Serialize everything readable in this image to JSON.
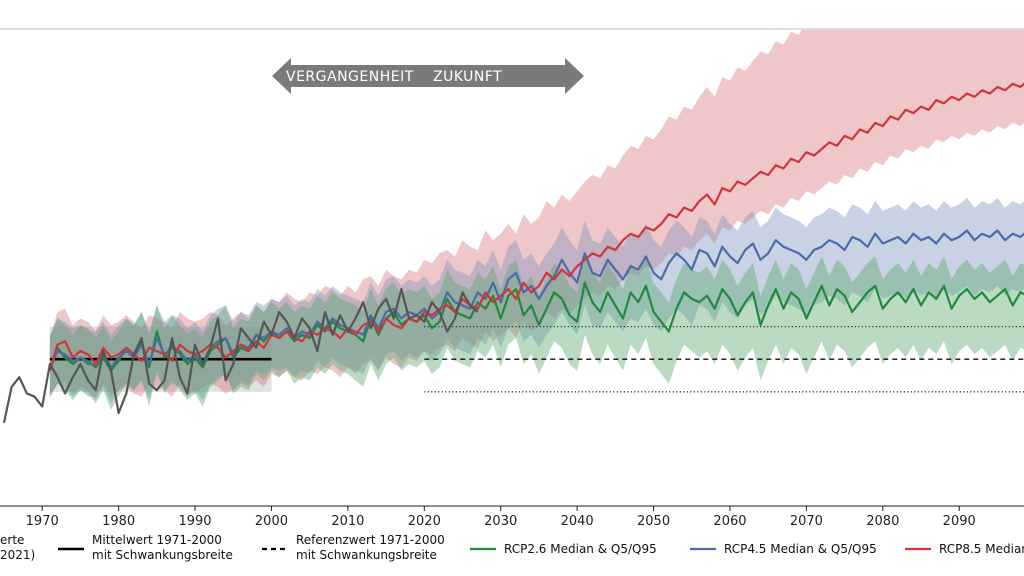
{
  "arrow": {
    "left_label": "VERGANGENHEIT",
    "right_label": "ZUKUNFT"
  },
  "legend": [
    {
      "key": "obs",
      "line1": "erte",
      "line2": "2021)",
      "color": "#555555",
      "dash": "solid"
    },
    {
      "key": "mean",
      "line1": "Mittelwert 1971-2000",
      "line2": "mit Schwankungsbreite",
      "color": "#000000",
      "dash": "solid"
    },
    {
      "key": "ref",
      "line1": "Referenzwert 1971-2000",
      "line2": "mit Schwankungsbreite",
      "color": "#000000",
      "dash": "dashed"
    },
    {
      "key": "rcp26",
      "line1": "RCP2.6 Median & Q5/Q95",
      "line2": "",
      "color": "#1f8a3c",
      "dash": "solid"
    },
    {
      "key": "rcp45",
      "line1": "RCP4.5 Median & Q5/Q95",
      "line2": "",
      "color": "#4a6aa8",
      "dash": "solid"
    },
    {
      "key": "rcp85",
      "line1": "RCP8.5 Median",
      "line2": "",
      "color": "#d0353a",
      "dash": "solid"
    }
  ],
  "chart_data": {
    "type": "line",
    "x_ticks": [
      1970,
      1980,
      1990,
      2000,
      2010,
      2020,
      2030,
      2040,
      2050,
      2060,
      2070,
      2080,
      2090
    ],
    "xlim": [
      1965,
      2099
    ],
    "ylim": [
      0,
      100
    ],
    "y_tick_labels_visible": false,
    "grid": false,
    "legend_position": "bottom",
    "reference": {
      "period": "1971-2000",
      "mean": 39.5,
      "upper": 49.5,
      "lower": 29.5,
      "future_start": 2020
    },
    "mean_band": {
      "x_start": 1971,
      "x_end": 2000,
      "mean": 39.5,
      "upper": 49.5,
      "lower": 29.5
    },
    "series": [
      {
        "name": "RCP2.6 Median & Q5/Q95",
        "color": "#1f8a3c",
        "x_start": 1971,
        "median": [
          36,
          43,
          40,
          38,
          40,
          39,
          37,
          40,
          36,
          39,
          43,
          41,
          45,
          37,
          48,
          40,
          44,
          41,
          38,
          40,
          37,
          42,
          44,
          46,
          40,
          43,
          42,
          47,
          45,
          48,
          46,
          48,
          45,
          47,
          46,
          50,
          48,
          51,
          49,
          48,
          47,
          45,
          52,
          47,
          52,
          54,
          50,
          52,
          51,
          53,
          49,
          51,
          58,
          54,
          53,
          52,
          57,
          55,
          59,
          52,
          59,
          61,
          53,
          56,
          50,
          55,
          60,
          58,
          53,
          51,
          63,
          57,
          54,
          60,
          56,
          52,
          60,
          57,
          62,
          54,
          51,
          48,
          55,
          60,
          58,
          57,
          59,
          55,
          61,
          58,
          53,
          57,
          60,
          50,
          56,
          61,
          55,
          60,
          58,
          52,
          57,
          62,
          56,
          61,
          59,
          54,
          57,
          60,
          62,
          55,
          58,
          60,
          57,
          61,
          56,
          60,
          58,
          62,
          55,
          59,
          61,
          58,
          60,
          57,
          59,
          61,
          56,
          60,
          59,
          57
        ],
        "lower": [
          28,
          32,
          30,
          27,
          30,
          29,
          26,
          30,
          24,
          28,
          32,
          30,
          33,
          25,
          36,
          29,
          33,
          30,
          27,
          29,
          25,
          31,
          33,
          35,
          29,
          31,
          30,
          35,
          33,
          36,
          34,
          36,
          32,
          34,
          33,
          37,
          35,
          38,
          36,
          35,
          33,
          31,
          38,
          33,
          38,
          40,
          36,
          38,
          37,
          39,
          35,
          37,
          43,
          39,
          38,
          37,
          42,
          40,
          44,
          37,
          44,
          46,
          38,
          41,
          35,
          40,
          45,
          43,
          38,
          36,
          47,
          41,
          38,
          44,
          40,
          36,
          44,
          41,
          46,
          38,
          35,
          32,
          39,
          44,
          42,
          40,
          42,
          38,
          44,
          41,
          36,
          40,
          43,
          33,
          39,
          44,
          38,
          43,
          41,
          35,
          40,
          45,
          39,
          44,
          42,
          37,
          40,
          43,
          45,
          38,
          41,
          43,
          40,
          44,
          39,
          43,
          41,
          45,
          38,
          42,
          44,
          41,
          43,
          40,
          42,
          44,
          39,
          43,
          42,
          40
        ],
        "upper": [
          46,
          52,
          50,
          47,
          50,
          49,
          46,
          50,
          45,
          48,
          52,
          50,
          54,
          47,
          56,
          49,
          53,
          50,
          47,
          49,
          46,
          51,
          53,
          56,
          49,
          52,
          51,
          56,
          54,
          57,
          55,
          57,
          54,
          56,
          55,
          59,
          57,
          60,
          58,
          57,
          56,
          54,
          61,
          56,
          61,
          63,
          59,
          61,
          60,
          62,
          58,
          60,
          67,
          63,
          62,
          61,
          66,
          64,
          68,
          61,
          68,
          70,
          62,
          65,
          59,
          64,
          69,
          67,
          62,
          60,
          72,
          66,
          63,
          69,
          65,
          61,
          69,
          66,
          71,
          63,
          60,
          57,
          64,
          69,
          67,
          66,
          68,
          64,
          70,
          67,
          62,
          66,
          69,
          59,
          65,
          70,
          64,
          69,
          67,
          61,
          66,
          71,
          65,
          70,
          68,
          63,
          66,
          69,
          71,
          64,
          67,
          69,
          66,
          70,
          65,
          69,
          67,
          71,
          64,
          68,
          70,
          67,
          69,
          66,
          68,
          70,
          65,
          69,
          68,
          66
        ]
      },
      {
        "name": "RCP4.5 Median & Q5/Q95",
        "color": "#4a6aa8",
        "x_start": 1971,
        "median": [
          37,
          42,
          41,
          39,
          40,
          38,
          38,
          41,
          37,
          40,
          42,
          40,
          44,
          38,
          46,
          41,
          43,
          42,
          39,
          41,
          38,
          43,
          45,
          46,
          41,
          44,
          43,
          47,
          46,
          48,
          47,
          49,
          46,
          48,
          47,
          51,
          49,
          52,
          50,
          49,
          48,
          47,
          53,
          49,
          54,
          55,
          52,
          54,
          53,
          55,
          52,
          54,
          60,
          57,
          56,
          55,
          60,
          58,
          63,
          57,
          64,
          66,
          60,
          62,
          58,
          62,
          65,
          70,
          66,
          63,
          72,
          66,
          65,
          70,
          67,
          64,
          68,
          67,
          71,
          66,
          64,
          69,
          72,
          70,
          67,
          73,
          72,
          68,
          74,
          71,
          69,
          73,
          75,
          70,
          72,
          76,
          74,
          73,
          72,
          70,
          73,
          74,
          76,
          75,
          73,
          77,
          76,
          74,
          78,
          75,
          76,
          77,
          75,
          78,
          76,
          77,
          75,
          78,
          76,
          77,
          79,
          76,
          78,
          77,
          79,
          76,
          78,
          77,
          79,
          78
        ],
        "lower": [
          28,
          32,
          31,
          28,
          30,
          28,
          28,
          31,
          26,
          30,
          32,
          30,
          33,
          27,
          35,
          30,
          32,
          31,
          28,
          30,
          27,
          32,
          34,
          35,
          30,
          33,
          32,
          36,
          35,
          37,
          36,
          37,
          34,
          36,
          35,
          39,
          37,
          40,
          38,
          37,
          36,
          35,
          40,
          36,
          41,
          42,
          39,
          41,
          40,
          42,
          39,
          41,
          46,
          43,
          42,
          41,
          46,
          44,
          49,
          43,
          49,
          51,
          45,
          47,
          43,
          47,
          50,
          54,
          50,
          47,
          56,
          50,
          49,
          54,
          51,
          48,
          52,
          51,
          55,
          50,
          48,
          52,
          55,
          53,
          50,
          56,
          55,
          51,
          57,
          54,
          52,
          56,
          58,
          53,
          55,
          59,
          57,
          56,
          55,
          53,
          56,
          57,
          59,
          58,
          56,
          60,
          59,
          57,
          61,
          58,
          59,
          60,
          58,
          61,
          59,
          60,
          58,
          61,
          59,
          60,
          62,
          59,
          61,
          60,
          62,
          59,
          61,
          60,
          62,
          61
        ],
        "upper": [
          47,
          52,
          51,
          49,
          50,
          48,
          48,
          51,
          47,
          50,
          52,
          50,
          54,
          48,
          56,
          51,
          53,
          52,
          49,
          51,
          48,
          53,
          55,
          56,
          51,
          54,
          53,
          57,
          56,
          58,
          57,
          59,
          56,
          58,
          57,
          61,
          59,
          62,
          60,
          59,
          58,
          57,
          63,
          59,
          64,
          65,
          62,
          64,
          63,
          65,
          62,
          64,
          70,
          67,
          66,
          65,
          70,
          68,
          73,
          67,
          74,
          76,
          70,
          72,
          68,
          72,
          75,
          80,
          76,
          73,
          82,
          76,
          75,
          80,
          77,
          74,
          78,
          77,
          81,
          76,
          74,
          79,
          82,
          80,
          77,
          83,
          82,
          78,
          84,
          81,
          79,
          83,
          85,
          80,
          82,
          86,
          84,
          83,
          82,
          80,
          83,
          84,
          86,
          85,
          83,
          87,
          86,
          84,
          88,
          85,
          86,
          87,
          85,
          88,
          86,
          87,
          85,
          88,
          86,
          87,
          89,
          86,
          88,
          87,
          89,
          86,
          88,
          87,
          89,
          88
        ]
      },
      {
        "name": "RCP8.5 Median",
        "color": "#d0353a",
        "x_start": 1971,
        "median": [
          36,
          44,
          45,
          40,
          42,
          41,
          38,
          43,
          40,
          41,
          43,
          41,
          39,
          43,
          42,
          41,
          39,
          44,
          42,
          41,
          42,
          44,
          43,
          40,
          42,
          44,
          42,
          45,
          43,
          47,
          46,
          48,
          46,
          45,
          48,
          47,
          49,
          48,
          46,
          49,
          47,
          50,
          51,
          48,
          52,
          50,
          49,
          52,
          51,
          54,
          53,
          55,
          56,
          54,
          58,
          56,
          55,
          60,
          57,
          59,
          61,
          58,
          63,
          60,
          62,
          66,
          64,
          67,
          65,
          68,
          70,
          72,
          71,
          74,
          73,
          76,
          78,
          77,
          80,
          79,
          81,
          84,
          83,
          86,
          85,
          88,
          90,
          87,
          92,
          91,
          94,
          93,
          95,
          97,
          96,
          99,
          98,
          101,
          100,
          103,
          102,
          104,
          106,
          105,
          108,
          107,
          110,
          109,
          112,
          111,
          114,
          113,
          116,
          115,
          117,
          116,
          119,
          118,
          120,
          119,
          121,
          120,
          122,
          121,
          123,
          122,
          124,
          123,
          125,
          124
        ],
        "lower": [
          28,
          32,
          33,
          29,
          31,
          30,
          27,
          32,
          28,
          30,
          31,
          29,
          28,
          32,
          31,
          30,
          28,
          32,
          30,
          29,
          31,
          32,
          31,
          29,
          30,
          32,
          31,
          33,
          31,
          35,
          34,
          36,
          34,
          33,
          36,
          35,
          37,
          36,
          34,
          37,
          35,
          38,
          39,
          36,
          40,
          38,
          37,
          40,
          39,
          42,
          41,
          43,
          44,
          42,
          46,
          44,
          43,
          48,
          45,
          47,
          49,
          46,
          51,
          48,
          50,
          54,
          52,
          55,
          53,
          56,
          58,
          60,
          59,
          62,
          61,
          64,
          66,
          65,
          68,
          67,
          69,
          72,
          71,
          74,
          73,
          76,
          78,
          75,
          80,
          79,
          82,
          81,
          83,
          85,
          84,
          87,
          86,
          89,
          88,
          91,
          90,
          92,
          94,
          93,
          96,
          95,
          98,
          97,
          100,
          99,
          102,
          101,
          104,
          103,
          105,
          104,
          107,
          106,
          108,
          107,
          109,
          108,
          110,
          109,
          111,
          110,
          112,
          111,
          113,
          112
        ],
        "upper": [
          46,
          54,
          55,
          50,
          52,
          51,
          48,
          53,
          50,
          51,
          53,
          51,
          49,
          53,
          52,
          51,
          49,
          54,
          52,
          51,
          52,
          54,
          53,
          50,
          52,
          54,
          52,
          56,
          54,
          58,
          57,
          60,
          58,
          57,
          60,
          59,
          62,
          61,
          59,
          62,
          60,
          64,
          65,
          62,
          67,
          65,
          64,
          67,
          66,
          70,
          69,
          72,
          73,
          71,
          76,
          74,
          73,
          79,
          76,
          78,
          81,
          78,
          84,
          81,
          83,
          88,
          86,
          90,
          88,
          91,
          94,
          96,
          95,
          99,
          98,
          102,
          105,
          104,
          108,
          107,
          110,
          114,
          113,
          117,
          116,
          120,
          123,
          120,
          126,
          125,
          129,
          128,
          131,
          134,
          133,
          137,
          136,
          140,
          139,
          143,
          142,
          145,
          148,
          147,
          151,
          150,
          154,
          153,
          157,
          156,
          160,
          159,
          163,
          162,
          165,
          164,
          168,
          167,
          170,
          169,
          172,
          171,
          174,
          173,
          176,
          175,
          178,
          177,
          180,
          179
        ]
      },
      {
        "name": "obs",
        "color": "#555555",
        "x_start": 1965,
        "values": [
          20,
          31,
          34,
          29,
          28,
          25,
          38,
          34,
          29,
          34,
          38,
          33,
          30,
          42,
          36,
          23,
          29,
          41,
          46,
          32,
          30,
          33,
          46,
          34,
          29,
          44,
          38,
          43,
          52,
          33,
          38,
          49,
          46,
          43,
          51,
          47,
          54,
          51,
          46,
          52,
          49,
          42,
          54,
          47,
          53,
          48,
          52,
          57,
          49,
          55,
          58,
          52,
          61,
          52,
          53,
          51,
          57,
          54,
          48,
          52,
          60,
          56,
          54
        ]
      }
    ]
  }
}
